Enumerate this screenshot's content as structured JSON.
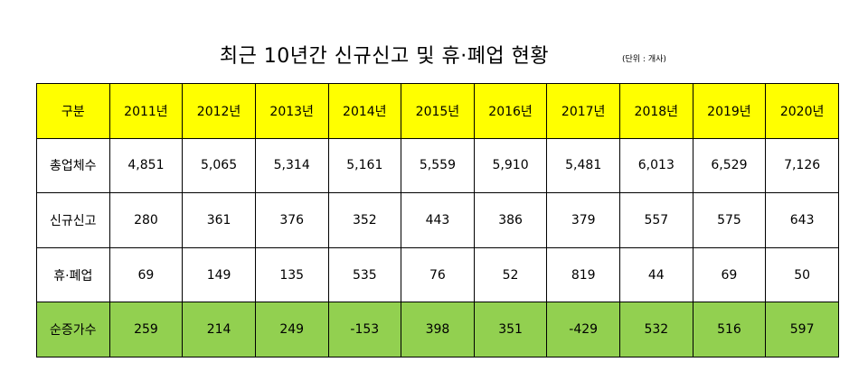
{
  "title": "최근 10년간 신규신고 및 휴·폐업 현황",
  "unit": "(단위 : 개사)",
  "colors": {
    "header_bg": "#ffff00",
    "total_bg": "#92d050",
    "border": "#000000"
  },
  "table": {
    "header": [
      "구분",
      "2011년",
      "2012년",
      "2013년",
      "2014년",
      "2015년",
      "2016년",
      "2017년",
      "2018년",
      "2019년",
      "2020년"
    ],
    "rows": [
      {
        "label": "총업체수",
        "values": [
          "4,851",
          "5,065",
          "5,314",
          "5,161",
          "5,559",
          "5,910",
          "5,481",
          "6,013",
          "6,529",
          "7,126"
        ]
      },
      {
        "label": "신규신고",
        "values": [
          "280",
          "361",
          "376",
          "352",
          "443",
          "386",
          "379",
          "557",
          "575",
          "643"
        ]
      },
      {
        "label": "휴·폐업",
        "values": [
          "69",
          "149",
          "135",
          "535",
          "76",
          "52",
          "819",
          "44",
          "69",
          "50"
        ]
      },
      {
        "label": "순증가수",
        "values": [
          "259",
          "214",
          "249",
          "-153",
          "398",
          "351",
          "-429",
          "532",
          "516",
          "597"
        ]
      }
    ]
  }
}
